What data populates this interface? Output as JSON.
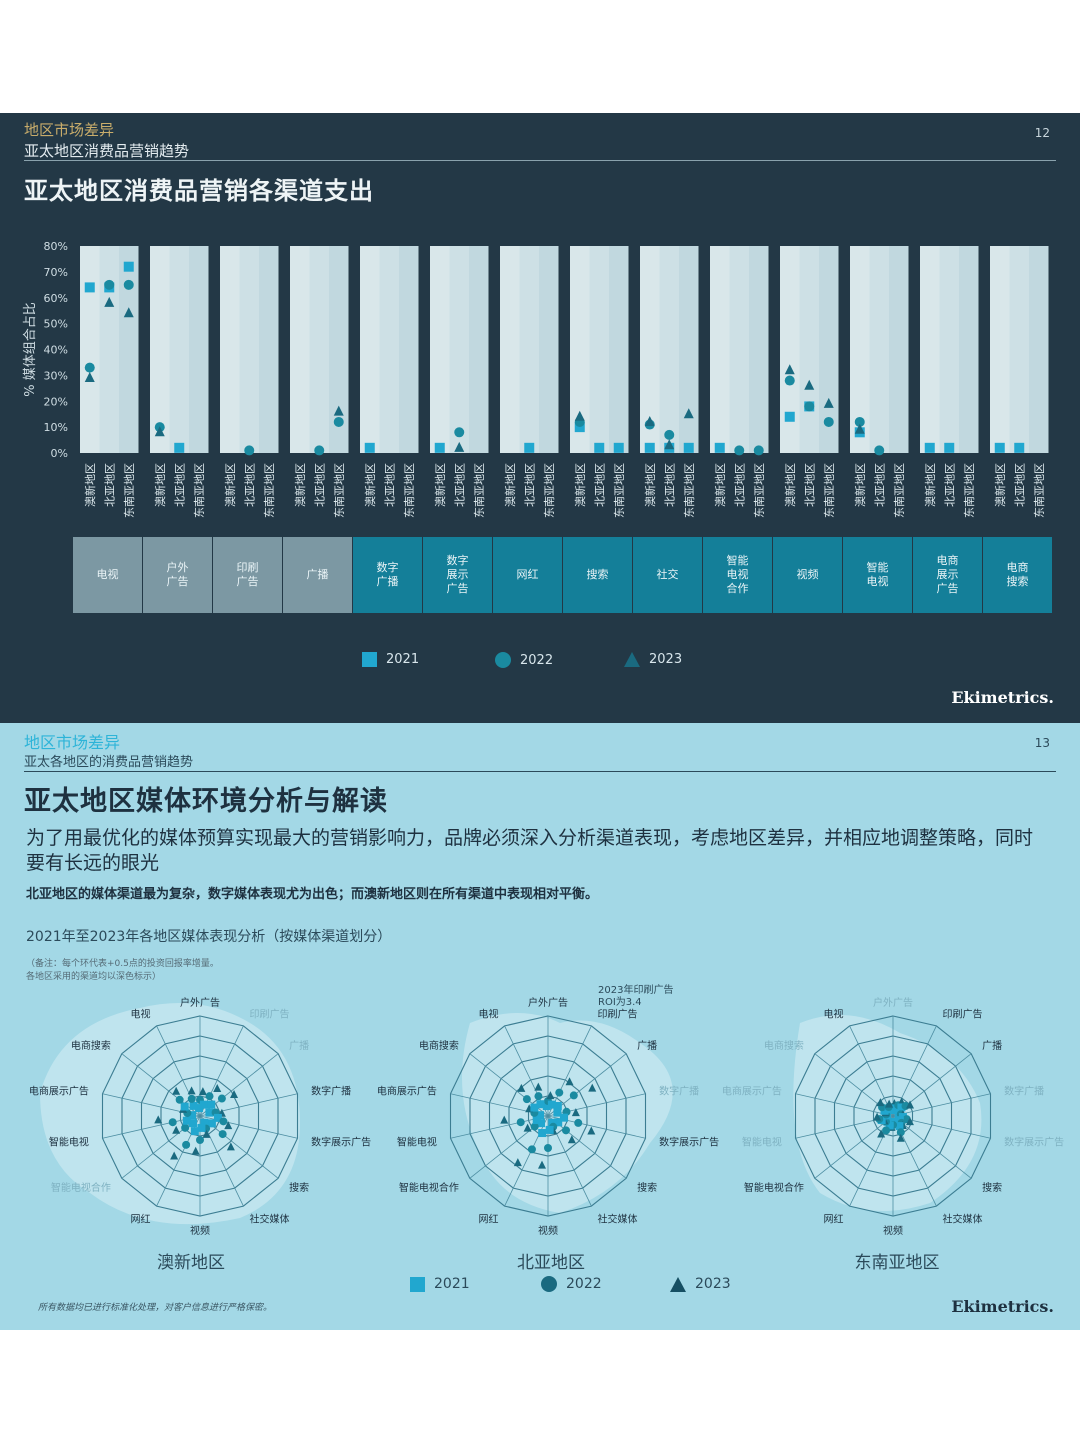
{
  "colors": {
    "y2021": "#21a7cf",
    "y2022": "#1a8aa0",
    "y2023": "#1a6a80",
    "slide1_bg": "#233846",
    "slide2_bg": "#a3d8e6",
    "accent_gold": "#c9ad6b",
    "accent_cyan": "#2db4d8",
    "cat_gray": "#7c98a3",
    "cat_teal": "#147f99"
  },
  "slide1": {
    "section": "地区市场差异",
    "subtitle": "亚太地区消费品营销趋势",
    "page": "12",
    "title": "亚太地区消费品营销各渠道支出",
    "logo": "Ekimetrics.",
    "legend": [
      "2021",
      "2022",
      "2023"
    ]
  },
  "slide2": {
    "section": "地区市场差异",
    "subtitle": "亚太各地区的消费品营销趋势",
    "page": "13",
    "title": "亚太地区媒体环境分析与解读",
    "lead": "为了用最优化的媒体预算实现最大的营销影响力，品牌必须深入分析渠道表现，考虑地区差异，并相应地调整策略，同时要有长远的眼光",
    "emph": "北亚地区的媒体渠道最为复杂，数字媒体表现尤为出色；而澳新地区则在所有渠道中表现相对平衡。",
    "chart_title": "2021年至2023年各地区媒体表现分析（按媒体渠道划分）",
    "note1": "（备注：每个环代表+0.5点的投资回报率增量。",
    "note2": "各地区采用的渠道均以深色标示）",
    "annotation": [
      "2023年印刷广告",
      "ROI为3.4"
    ],
    "legend": [
      "2021",
      "2022",
      "2023"
    ],
    "footer": "所有数据均已进行标准化处理，对客户信息进行严格保密。",
    "logo": "Ekimetrics."
  },
  "chart_data": [
    {
      "type": "scatter",
      "title": "亚太地区消费品营销各渠道支出",
      "ylabel": "% 媒体组合占比",
      "ylim": [
        0,
        80
      ],
      "yticks": [
        "0%",
        "10%",
        "20%",
        "30%",
        "40%",
        "50%",
        "60%",
        "70%",
        "80%"
      ],
      "regions": [
        "澳新地区",
        "北亚地区",
        "东南亚地区"
      ],
      "categories": [
        "电视",
        "户外\n广告",
        "印刷\n广告",
        "广播",
        "数字\n广播",
        "数字\n展示\n广告",
        "网红",
        "搜索",
        "社交",
        "智能\n电视\n合作",
        "视频",
        "智能\n电视",
        "电商\n展示\n广告",
        "电商\n搜索"
      ],
      "category_group": [
        "traditional",
        "traditional",
        "traditional",
        "traditional",
        "digital",
        "digital",
        "digital",
        "digital",
        "digital",
        "digital",
        "digital",
        "digital",
        "digital",
        "digital"
      ],
      "series": [
        {
          "name": "2021",
          "values": [
            [
              64,
              64,
              72
            ],
            [
              null,
              2,
              null
            ],
            [
              null,
              null,
              null
            ],
            [
              null,
              null,
              null
            ],
            [
              2,
              null,
              null
            ],
            [
              2,
              null,
              null
            ],
            [
              null,
              2,
              null
            ],
            [
              10,
              2,
              2
            ],
            [
              2,
              2,
              2
            ],
            [
              2,
              null,
              null
            ],
            [
              14,
              18,
              null
            ],
            [
              8,
              null,
              null
            ],
            [
              2,
              2,
              null
            ],
            [
              2,
              2,
              null
            ]
          ]
        },
        {
          "name": "2022",
          "values": [
            [
              33,
              65,
              65
            ],
            [
              10,
              null,
              null
            ],
            [
              null,
              1,
              null
            ],
            [
              null,
              1,
              12
            ],
            [
              null,
              null,
              null
            ],
            [
              null,
              8,
              null
            ],
            [
              null,
              null,
              null
            ],
            [
              12,
              null,
              null
            ],
            [
              11,
              7,
              null
            ],
            [
              null,
              1,
              1
            ],
            [
              28,
              18,
              12
            ],
            [
              12,
              1,
              null
            ],
            [
              null,
              null,
              null
            ],
            [
              null,
              null,
              null
            ]
          ]
        },
        {
          "name": "2023",
          "values": [
            [
              29,
              58,
              54
            ],
            [
              8,
              null,
              null
            ],
            [
              null,
              null,
              null
            ],
            [
              null,
              null,
              16
            ],
            [
              null,
              null,
              null
            ],
            [
              null,
              2,
              null
            ],
            [
              null,
              null,
              null
            ],
            [
              14,
              null,
              null
            ],
            [
              12,
              3,
              15
            ],
            [
              null,
              null,
              null
            ],
            [
              32,
              26,
              19
            ],
            [
              9,
              null,
              null
            ],
            [
              null,
              null,
              null
            ],
            [
              null,
              null,
              null
            ]
          ]
        }
      ]
    },
    {
      "type": "radar",
      "title": "2021年至2023年各地区媒体表现分析（按媒体渠道划分）",
      "ring_step": 0.5,
      "rings": 5,
      "regions": [
        {
          "name": "澳新地区",
          "axes": [
            "户外广告",
            "印刷广告",
            "广播",
            "数字广播",
            "数字展示广告",
            "搜索",
            "社交媒体",
            "视频",
            "网红",
            "智能电视合作",
            "智能电视",
            "电商展示广告",
            "电商搜索",
            "电视"
          ],
          "active": [
            true,
            false,
            false,
            true,
            true,
            true,
            true,
            true,
            true,
            false,
            true,
            true,
            true,
            true
          ]
        },
        {
          "name": "北亚地区",
          "axes": [
            "户外广告",
            "印刷广告",
            "广播",
            "数字广播",
            "数字展示广告",
            "搜索",
            "社交媒体",
            "视频",
            "网红",
            "智能电视合作",
            "智能电视",
            "电商展示广告",
            "电商搜索",
            "电视"
          ],
          "active": [
            true,
            true,
            true,
            false,
            true,
            true,
            true,
            true,
            true,
            true,
            true,
            true,
            true,
            true
          ]
        },
        {
          "name": "东南亚地区",
          "axes": [
            "户外广告",
            "印刷广告",
            "广播",
            "数字广播",
            "数字展示广告",
            "搜索",
            "社交媒体",
            "视频",
            "网红",
            "智能电视合作",
            "智能电视",
            "电商展示广告",
            "电商搜索",
            "电视"
          ],
          "active": [
            false,
            true,
            true,
            false,
            false,
            true,
            true,
            true,
            true,
            true,
            false,
            false,
            false,
            true
          ]
        }
      ],
      "series_names": [
        "2021",
        "2022",
        "2023"
      ]
    }
  ]
}
